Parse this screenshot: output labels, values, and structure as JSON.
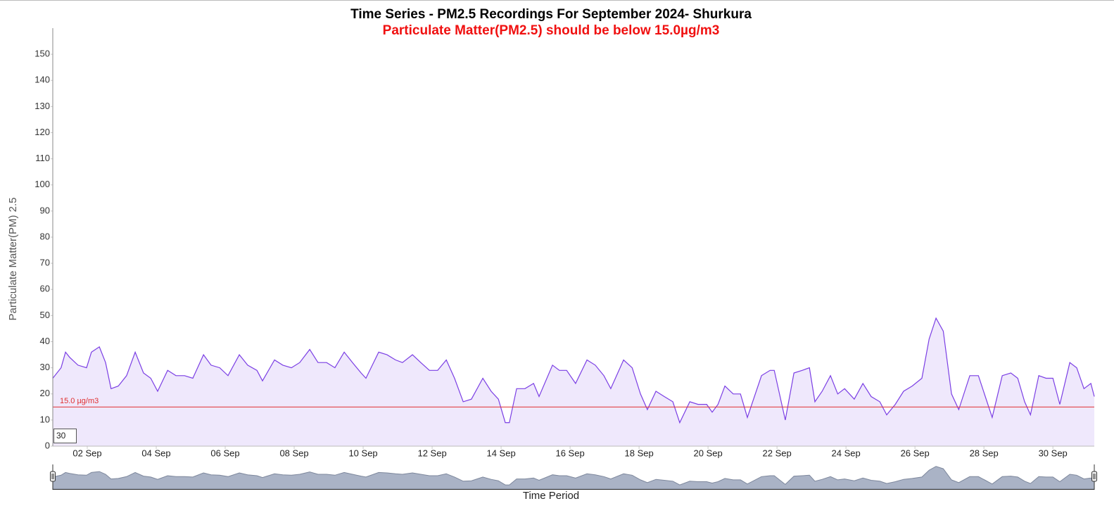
{
  "chart_data": {
    "type": "area",
    "title": "Time Series - PM2.5 Recordings For September 2024- Shurkura",
    "subtitle": "Particulate Matter(PM2.5) should be below 15.0µg/m3",
    "y_label": "Particulate Matter(PM) 2.5",
    "x_label": "Time Period",
    "range_input": "30",
    "threshold": 15,
    "threshold_label": "15.0 µg/m3",
    "threshold_color": "#e03030",
    "xlim": [
      1,
      31.2
    ],
    "ylim": [
      0,
      160
    ],
    "yticks": [
      0,
      10,
      20,
      30,
      40,
      50,
      60,
      70,
      80,
      90,
      100,
      110,
      120,
      130,
      140,
      150
    ],
    "xticks": [
      {
        "value": 2,
        "label": "02 Sep"
      },
      {
        "value": 4,
        "label": "04 Sep"
      },
      {
        "value": 6,
        "label": "06 Sep"
      },
      {
        "value": 8,
        "label": "08 Sep"
      },
      {
        "value": 10,
        "label": "10 Sep"
      },
      {
        "value": 12,
        "label": "12 Sep"
      },
      {
        "value": 14,
        "label": "14 Sep"
      },
      {
        "value": 16,
        "label": "16 Sep"
      },
      {
        "value": 18,
        "label": "18 Sep"
      },
      {
        "value": 20,
        "label": "20 Sep"
      },
      {
        "value": 22,
        "label": "22 Sep"
      },
      {
        "value": 24,
        "label": "24 Sep"
      },
      {
        "value": 26,
        "label": "26 Sep"
      },
      {
        "value": 28,
        "label": "28 Sep"
      },
      {
        "value": 30,
        "label": "30 Sep"
      }
    ],
    "series": [
      {
        "name": "PM2.5",
        "color": "#7b3fe4",
        "x": [
          1.0,
          1.24,
          1.37,
          1.49,
          1.73,
          1.98,
          2.12,
          2.35,
          2.53,
          2.69,
          2.9,
          3.14,
          3.39,
          3.63,
          3.84,
          4.04,
          4.33,
          4.57,
          4.82,
          5.06,
          5.37,
          5.59,
          5.84,
          6.08,
          6.41,
          6.65,
          6.92,
          7.08,
          7.43,
          7.67,
          7.92,
          8.16,
          8.45,
          8.69,
          8.94,
          9.18,
          9.45,
          9.69,
          9.94,
          10.08,
          10.45,
          10.69,
          10.94,
          11.14,
          11.43,
          11.67,
          11.92,
          12.16,
          12.41,
          12.65,
          12.9,
          13.14,
          13.47,
          13.71,
          13.92,
          14.12,
          14.24,
          14.45,
          14.69,
          14.94,
          15.1,
          15.49,
          15.69,
          15.9,
          16.16,
          16.49,
          16.73,
          16.98,
          17.18,
          17.55,
          17.8,
          18.04,
          18.24,
          18.49,
          18.73,
          18.98,
          19.18,
          19.47,
          19.71,
          19.96,
          20.12,
          20.29,
          20.49,
          20.73,
          20.94,
          21.14,
          21.55,
          21.8,
          21.92,
          22.24,
          22.49,
          22.73,
          22.94,
          23.1,
          23.31,
          23.55,
          23.76,
          23.96,
          24.24,
          24.49,
          24.73,
          24.98,
          25.18,
          25.43,
          25.67,
          25.92,
          26.2,
          26.41,
          26.61,
          26.82,
          27.06,
          27.27,
          27.59,
          27.84,
          28.04,
          28.24,
          28.53,
          28.78,
          28.98,
          29.18,
          29.35,
          29.59,
          29.8,
          30.0,
          30.2,
          30.49,
          30.69,
          30.9,
          31.1,
          31.2
        ],
        "values": [
          26,
          30,
          36,
          34,
          31,
          30,
          36,
          38,
          32,
          22,
          23,
          27,
          36,
          28,
          26,
          21,
          29,
          27,
          27,
          26,
          35,
          31,
          30,
          27,
          35,
          31,
          29,
          25,
          33,
          31,
          30,
          32,
          37,
          32,
          32,
          30,
          36,
          32,
          28,
          26,
          36,
          35,
          33,
          32,
          35,
          32,
          29,
          29,
          33,
          26,
          17,
          18,
          26,
          21,
          18,
          9,
          9,
          22,
          22,
          24,
          19,
          31,
          29,
          29,
          24,
          33,
          31,
          27,
          22,
          33,
          30,
          20,
          14,
          21,
          19,
          17,
          9,
          17,
          16,
          16,
          13,
          16,
          23,
          20,
          20,
          11,
          27,
          29,
          29,
          10,
          28,
          29,
          30,
          17,
          21,
          27,
          20,
          22,
          18,
          24,
          19,
          17,
          12,
          16,
          21,
          23,
          26,
          41,
          49,
          44,
          20,
          14,
          27,
          27,
          19,
          11,
          27,
          28,
          26,
          17,
          12,
          27,
          26,
          26,
          16,
          32,
          30,
          22,
          24,
          19
        ]
      }
    ]
  }
}
